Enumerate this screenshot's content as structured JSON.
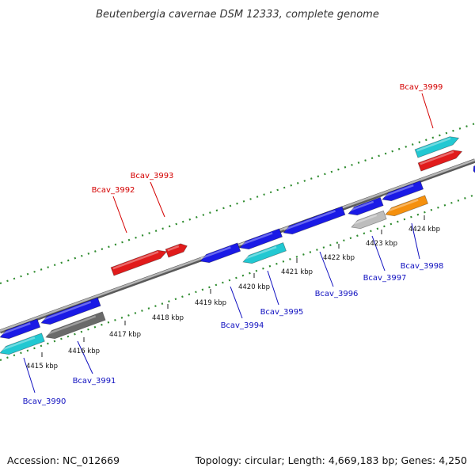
{
  "title": "Beutenbergia cavernae DSM 12333, complete genome",
  "footer": {
    "accession": "Accession: NC_012669",
    "summary": "Topology: circular; Length: 4,669,183 bp; Genes: 4,250"
  },
  "colors": {
    "forward_gene": "#e11b1b",
    "reverse_gene": "#1a1ae6",
    "cyan_gene": "#22c8d2",
    "gray_gene": "#6a6a6a",
    "light_gray_gene": "#bdbdbd",
    "orange_gene": "#f5900e",
    "backbone": "#8a8a8a",
    "gc_dots": "#2e8b2e",
    "label_forward": "#d40000",
    "label_reverse": "#1010c0"
  },
  "ticks": [
    {
      "label": "4415 kbp"
    },
    {
      "label": "4416 kbp"
    },
    {
      "label": "4417 kbp"
    },
    {
      "label": "4418 kbp"
    },
    {
      "label": "4419 kbp"
    },
    {
      "label": "4420 kbp"
    },
    {
      "label": "4421 kbp"
    },
    {
      "label": "4422 kbp"
    },
    {
      "label": "4423 kbp"
    },
    {
      "label": "4424 kbp"
    }
  ],
  "gene_labels": [
    {
      "label": "Bcav_3990",
      "strand": "reverse"
    },
    {
      "label": "Bcav_3991",
      "strand": "reverse"
    },
    {
      "label": "Bcav_3992",
      "strand": "forward"
    },
    {
      "label": "Bcav_3993",
      "strand": "forward"
    },
    {
      "label": "Bcav_3994",
      "strand": "reverse"
    },
    {
      "label": "Bcav_3995",
      "strand": "reverse"
    },
    {
      "label": "Bcav_3996",
      "strand": "reverse"
    },
    {
      "label": "Bcav_3997",
      "strand": "reverse"
    },
    {
      "label": "Bcav_3998",
      "strand": "reverse"
    },
    {
      "label": "Bcav_3999",
      "strand": "forward"
    }
  ]
}
